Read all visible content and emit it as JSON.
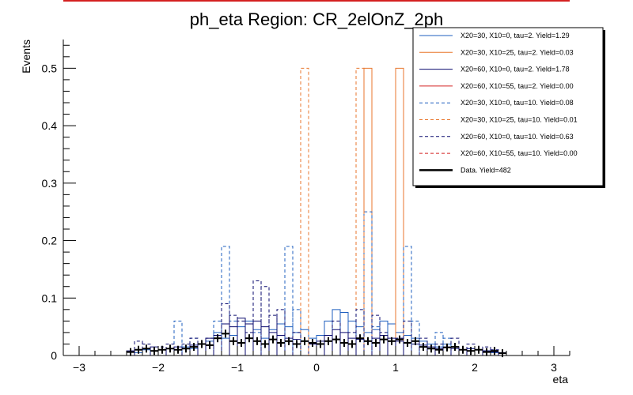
{
  "chart_data": {
    "type": "histogram",
    "title": "ph_eta Region: CR_2elOnZ_2ph",
    "xlabel": "eta",
    "ylabel": "Events",
    "xlim": [
      -3.2,
      3.2
    ],
    "ylim": [
      0,
      0.55
    ],
    "bin_width": 0.1,
    "x_ticks": [
      -3,
      -2,
      -1,
      0,
      1,
      2,
      3
    ],
    "x_tick_labels": [
      "−3",
      "−2",
      "−1",
      "0",
      "1",
      "2",
      "3"
    ],
    "y_ticks": [
      0,
      0.1,
      0.2,
      0.3,
      0.4,
      0.5
    ],
    "y_tick_labels": [
      "0",
      "0.1",
      "0.2",
      "0.3",
      "0.4",
      "0.5"
    ],
    "legend_position": "top-right",
    "series": [
      {
        "name": "X20=30, X10=0, tau=2. Yield=1.29",
        "color": "#1f5fbf",
        "style": "solid",
        "bins": [
          [
            -2.3,
            0.005
          ],
          [
            -2.2,
            0.01
          ],
          [
            -2.1,
            0.008
          ],
          [
            -2.0,
            0.01
          ],
          [
            -1.9,
            0.012
          ],
          [
            -1.8,
            0.01
          ],
          [
            -1.7,
            0.015
          ],
          [
            -1.6,
            0.012
          ],
          [
            -1.5,
            0.02
          ],
          [
            -1.4,
            0.025
          ],
          [
            -1.3,
            0.04
          ],
          [
            -1.2,
            0.03
          ],
          [
            -1.1,
            0.035
          ],
          [
            -1.0,
            0.05
          ],
          [
            -0.9,
            0.06
          ],
          [
            -0.8,
            0.045
          ],
          [
            -0.7,
            0.03
          ],
          [
            -0.6,
            0.045
          ],
          [
            -0.5,
            0.055
          ],
          [
            -0.4,
            0.05
          ],
          [
            -0.3,
            0.04
          ],
          [
            -0.2,
            0.045
          ],
          [
            -0.1,
            0.03
          ],
          [
            0.0,
            0.035
          ],
          [
            0.1,
            0.06
          ],
          [
            0.2,
            0.08
          ],
          [
            0.3,
            0.075
          ],
          [
            0.4,
            0.06
          ],
          [
            0.5,
            0.05
          ],
          [
            0.6,
            0.04
          ],
          [
            0.7,
            0.045
          ],
          [
            0.8,
            0.06
          ],
          [
            0.9,
            0.055
          ],
          [
            1.0,
            0.04
          ],
          [
            1.1,
            0.035
          ],
          [
            1.2,
            0.03
          ],
          [
            1.3,
            0.025
          ],
          [
            1.4,
            0.02
          ],
          [
            1.5,
            0.015
          ],
          [
            1.6,
            0.02
          ],
          [
            1.7,
            0.015
          ],
          [
            1.8,
            0.01
          ],
          [
            1.9,
            0.012
          ],
          [
            2.0,
            0.01
          ],
          [
            2.1,
            0.008
          ],
          [
            2.2,
            0.005
          ],
          [
            2.3,
            0.004
          ]
        ]
      },
      {
        "name": "X20=30, X10=25, tau=2. Yield=0.03",
        "color": "#e8762c",
        "style": "solid",
        "bins": [
          [
            0.6,
            0.5
          ],
          [
            1.0,
            0.5
          ]
        ]
      },
      {
        "name": "X20=60, X10=0, tau=2. Yield=1.78",
        "color": "#0a0a6e",
        "style": "solid",
        "bins": [
          [
            -2.4,
            0.008
          ],
          [
            -2.3,
            0.01
          ],
          [
            -2.2,
            0.012
          ],
          [
            -2.1,
            0.015
          ],
          [
            -2.0,
            0.01
          ],
          [
            -1.9,
            0.012
          ],
          [
            -1.8,
            0.015
          ],
          [
            -1.7,
            0.012
          ],
          [
            -1.6,
            0.018
          ],
          [
            -1.5,
            0.02
          ],
          [
            -1.4,
            0.03
          ],
          [
            -1.3,
            0.035
          ],
          [
            -1.2,
            0.055
          ],
          [
            -1.1,
            0.05
          ],
          [
            -1.0,
            0.065
          ],
          [
            -0.9,
            0.055
          ],
          [
            -0.8,
            0.06
          ],
          [
            -0.7,
            0.05
          ],
          [
            -0.6,
            0.04
          ],
          [
            -0.5,
            0.035
          ],
          [
            -0.4,
            0.03
          ],
          [
            -0.3,
            0.028
          ],
          [
            -0.2,
            0.025
          ],
          [
            -0.1,
            0.02
          ],
          [
            0.0,
            0.025
          ],
          [
            0.1,
            0.035
          ],
          [
            0.2,
            0.045
          ],
          [
            0.3,
            0.04
          ],
          [
            0.4,
            0.03
          ],
          [
            0.5,
            0.028
          ],
          [
            0.6,
            0.025
          ],
          [
            0.7,
            0.03
          ],
          [
            0.8,
            0.035
          ],
          [
            0.9,
            0.03
          ],
          [
            1.0,
            0.025
          ],
          [
            1.1,
            0.022
          ],
          [
            1.2,
            0.02
          ],
          [
            1.3,
            0.018
          ],
          [
            1.4,
            0.015
          ],
          [
            1.5,
            0.012
          ],
          [
            1.6,
            0.015
          ],
          [
            1.7,
            0.012
          ],
          [
            1.8,
            0.01
          ],
          [
            1.9,
            0.012
          ],
          [
            2.0,
            0.01
          ],
          [
            2.1,
            0.008
          ],
          [
            2.2,
            0.006
          ],
          [
            2.3,
            0.005
          ]
        ]
      },
      {
        "name": "X20=60, X10=55, tau=2. Yield=0.00",
        "color": "#d42020",
        "style": "solid",
        "bins": []
      },
      {
        "name": "X20=30, X10=0, tau=10. Yield=0.08",
        "color": "#1f5fbf",
        "style": "dashed",
        "bins": [
          [
            -2.3,
            0.01
          ],
          [
            -2.2,
            0.012
          ],
          [
            -1.8,
            0.06
          ],
          [
            -1.7,
            0.02
          ],
          [
            -1.6,
            0.03
          ],
          [
            -1.3,
            0.06
          ],
          [
            -1.2,
            0.19
          ],
          [
            -1.1,
            0.06
          ],
          [
            -0.8,
            0.04
          ],
          [
            -0.4,
            0.19
          ],
          [
            -0.3,
            0.08
          ],
          [
            0.6,
            0.25
          ],
          [
            0.7,
            0.05
          ],
          [
            1.1,
            0.19
          ],
          [
            1.2,
            0.06
          ],
          [
            1.5,
            0.04
          ],
          [
            1.6,
            0.03
          ],
          [
            1.9,
            0.02
          ]
        ]
      },
      {
        "name": "X20=30, X10=25, tau=10. Yield=0.01",
        "color": "#e8762c",
        "style": "dashed",
        "bins": [
          [
            -0.2,
            0.5
          ],
          [
            0.5,
            0.5
          ]
        ]
      },
      {
        "name": "X20=60, X10=0, tau=10. Yield=0.63",
        "color": "#0a0a6e",
        "style": "dashed",
        "bins": [
          [
            -2.3,
            0.025
          ],
          [
            -2.2,
            0.02
          ],
          [
            -2.0,
            0.015
          ],
          [
            -1.9,
            0.02
          ],
          [
            -1.7,
            0.02
          ],
          [
            -1.6,
            0.03
          ],
          [
            -1.4,
            0.03
          ],
          [
            -1.2,
            0.09
          ],
          [
            -1.1,
            0.07
          ],
          [
            -1.0,
            0.06
          ],
          [
            -0.9,
            0.04
          ],
          [
            -0.8,
            0.13
          ],
          [
            -0.7,
            0.12
          ],
          [
            -0.6,
            0.07
          ],
          [
            -0.5,
            0.08
          ],
          [
            -0.3,
            0.04
          ],
          [
            0.2,
            0.06
          ],
          [
            0.4,
            0.04
          ],
          [
            0.5,
            0.08
          ],
          [
            0.7,
            0.07
          ],
          [
            0.8,
            0.04
          ],
          [
            1.0,
            0.03
          ],
          [
            1.1,
            0.06
          ],
          [
            1.3,
            0.03
          ],
          [
            1.5,
            0.02
          ],
          [
            1.7,
            0.03
          ],
          [
            1.9,
            0.02
          ],
          [
            2.1,
            0.015
          ],
          [
            2.2,
            0.01
          ]
        ]
      },
      {
        "name": "X20=60, X10=55, tau=10. Yield=0.00",
        "color": "#d42020",
        "style": "dashed",
        "bins": []
      },
      {
        "name": "Data. Yield=482",
        "color": "#000000",
        "style": "points",
        "points": [
          [
            -2.35,
            0.006
          ],
          [
            -2.25,
            0.01
          ],
          [
            -2.15,
            0.012
          ],
          [
            -2.05,
            0.008
          ],
          [
            -1.95,
            0.01
          ],
          [
            -1.85,
            0.012
          ],
          [
            -1.75,
            0.01
          ],
          [
            -1.65,
            0.012
          ],
          [
            -1.55,
            0.015
          ],
          [
            -1.45,
            0.02
          ],
          [
            -1.35,
            0.018
          ],
          [
            -1.25,
            0.03
          ],
          [
            -1.15,
            0.038
          ],
          [
            -1.05,
            0.025
          ],
          [
            -0.95,
            0.022
          ],
          [
            -0.85,
            0.03
          ],
          [
            -0.75,
            0.025
          ],
          [
            -0.65,
            0.02
          ],
          [
            -0.55,
            0.028
          ],
          [
            -0.45,
            0.022
          ],
          [
            -0.35,
            0.025
          ],
          [
            -0.25,
            0.02
          ],
          [
            -0.15,
            0.025
          ],
          [
            -0.05,
            0.022
          ],
          [
            0.05,
            0.02
          ],
          [
            0.15,
            0.025
          ],
          [
            0.25,
            0.028
          ],
          [
            0.35,
            0.022
          ],
          [
            0.45,
            0.02
          ],
          [
            0.55,
            0.03
          ],
          [
            0.65,
            0.025
          ],
          [
            0.75,
            0.022
          ],
          [
            0.85,
            0.028
          ],
          [
            0.95,
            0.025
          ],
          [
            1.05,
            0.028
          ],
          [
            1.15,
            0.022
          ],
          [
            1.25,
            0.025
          ],
          [
            1.35,
            0.015
          ],
          [
            1.45,
            0.012
          ],
          [
            1.55,
            0.01
          ],
          [
            1.65,
            0.014
          ],
          [
            1.75,
            0.015
          ],
          [
            1.85,
            0.01
          ],
          [
            1.95,
            0.008
          ],
          [
            2.05,
            0.01
          ],
          [
            2.15,
            0.006
          ],
          [
            2.25,
            0.008
          ],
          [
            2.35,
            0.004
          ]
        ]
      }
    ]
  }
}
